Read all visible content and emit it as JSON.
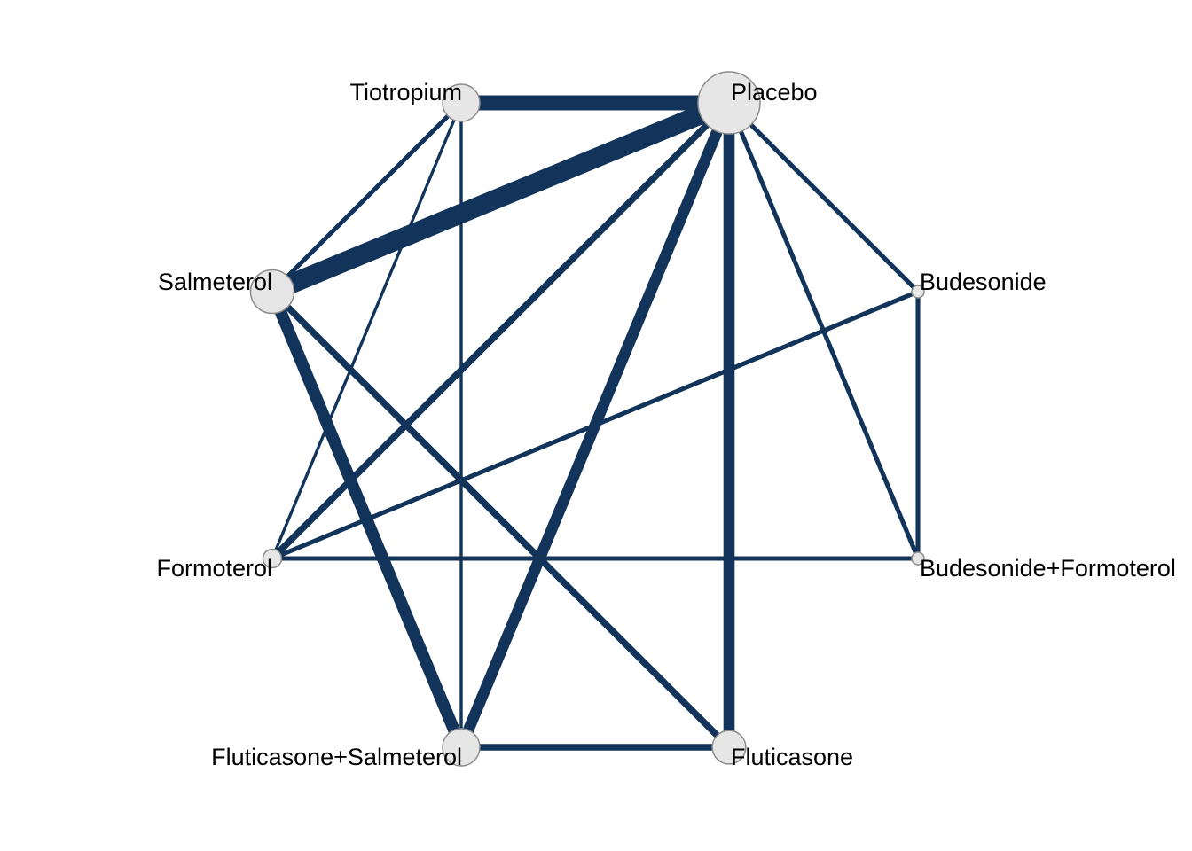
{
  "diagram": {
    "type": "network-graph",
    "edge_color": "#12345a",
    "node_fill": "#e6e6e6",
    "node_stroke": "#8c8c8c",
    "nodes": [
      {
        "id": "placebo",
        "label": "Placebo",
        "size": 5
      },
      {
        "id": "tiotropium",
        "label": "Tiotropium",
        "size": 3
      },
      {
        "id": "salmeterol",
        "label": "Salmeterol",
        "size": 3.5
      },
      {
        "id": "formoterol",
        "label": "Formoterol",
        "size": 1.5
      },
      {
        "id": "fluticasone_salmeterol",
        "label": "Fluticasone+Salmeterol",
        "size": 3
      },
      {
        "id": "fluticasone",
        "label": "Fluticasone",
        "size": 2.7
      },
      {
        "id": "budesonide_formoterol",
        "label": "Budesonide+Formoterol",
        "size": 1
      },
      {
        "id": "budesonide",
        "label": "Budesonide",
        "size": 1
      }
    ],
    "edges": [
      {
        "source": "tiotropium",
        "target": "placebo",
        "weight": 5
      },
      {
        "source": "salmeterol",
        "target": "placebo",
        "weight": 6.5
      },
      {
        "source": "formoterol",
        "target": "placebo",
        "weight": 2.2
      },
      {
        "source": "fluticasone_salmeterol",
        "target": "placebo",
        "weight": 3.7
      },
      {
        "source": "fluticasone",
        "target": "placebo",
        "weight": 3.7
      },
      {
        "source": "budesonide",
        "target": "placebo",
        "weight": 1.5
      },
      {
        "source": "budesonide_formoterol",
        "target": "placebo",
        "weight": 1.5
      },
      {
        "source": "tiotropium",
        "target": "salmeterol",
        "weight": 1.5
      },
      {
        "source": "tiotropium",
        "target": "formoterol",
        "weight": 1
      },
      {
        "source": "tiotropium",
        "target": "fluticasone_salmeterol",
        "weight": 1
      },
      {
        "source": "salmeterol",
        "target": "fluticasone_salmeterol",
        "weight": 4
      },
      {
        "source": "salmeterol",
        "target": "fluticasone",
        "weight": 2.2
      },
      {
        "source": "formoterol",
        "target": "budesonide",
        "weight": 1.5
      },
      {
        "source": "formoterol",
        "target": "budesonide_formoterol",
        "weight": 1.5
      },
      {
        "source": "fluticasone_salmeterol",
        "target": "fluticasone",
        "weight": 2.2
      },
      {
        "source": "budesonide",
        "target": "budesonide_formoterol",
        "weight": 1.5
      }
    ]
  }
}
